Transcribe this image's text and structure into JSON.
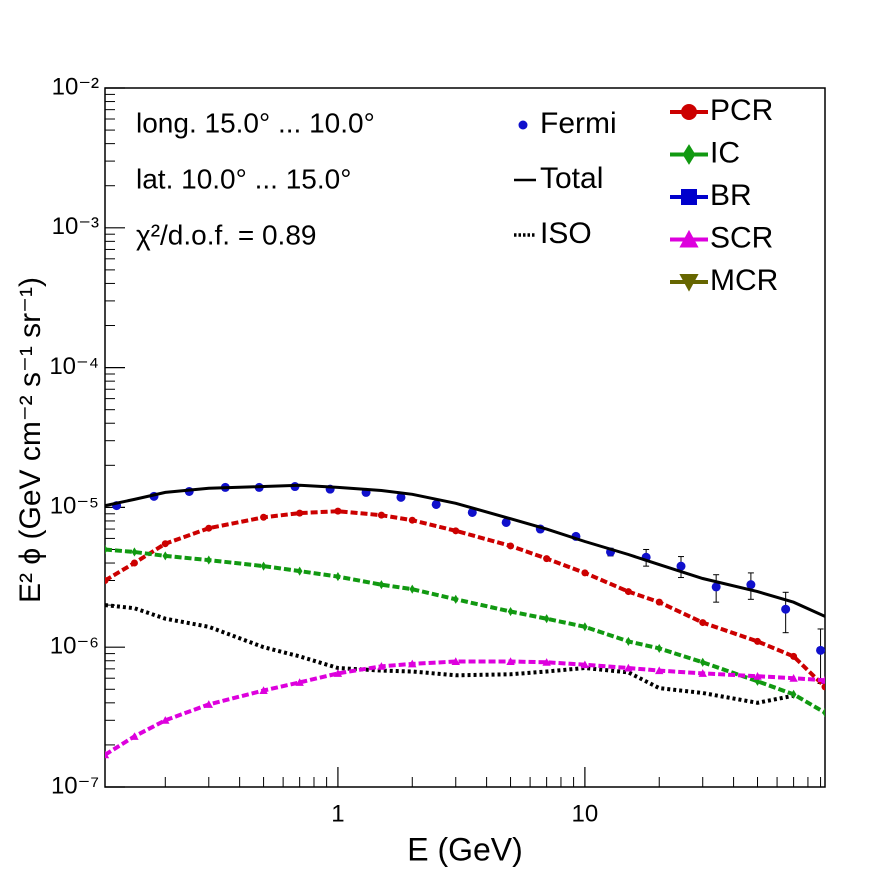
{
  "chart_data": {
    "type": "line",
    "xlabel": "E (GeV)",
    "ylabel": "E² ϕ (GeV cm⁻² s⁻¹ sr⁻¹)",
    "annotations": [
      "long. 15.0° ... 10.0°",
      "lat. 10.0° ... 15.0°",
      "χ²/d.o.f. = 0.89"
    ],
    "log_x": true,
    "log_y": true,
    "xlim": [
      0.114,
      93.8
    ],
    "ylim": [
      1e-07,
      0.01
    ],
    "xticks": [
      1,
      10
    ],
    "xminorticks": [
      0.2,
      0.3,
      0.4,
      0.5,
      0.6,
      0.7,
      0.8,
      0.9,
      2,
      3,
      4,
      5,
      6,
      7,
      8,
      9,
      20,
      30,
      40,
      50,
      60,
      70,
      80,
      90
    ],
    "yticks": [
      {
        "value": 1e-07,
        "label": "10⁻⁷"
      },
      {
        "value": 1e-06,
        "label": "10⁻⁶"
      },
      {
        "value": 1e-05,
        "label": "10⁻⁵"
      },
      {
        "value": 0.0001,
        "label": "10⁻⁴"
      },
      {
        "value": 0.001,
        "label": "10⁻³"
      },
      {
        "value": 0.01,
        "label": "10⁻²"
      }
    ],
    "yminorticks": [
      2e-07,
      3e-07,
      4e-07,
      5e-07,
      6e-07,
      7e-07,
      8e-07,
      9e-07,
      2e-06,
      3e-06,
      4e-06,
      5e-06,
      6e-06,
      7e-06,
      8e-06,
      9e-06,
      2e-05,
      3e-05,
      4e-05,
      5e-05,
      6e-05,
      7e-05,
      8e-05,
      9e-05,
      0.0002,
      0.0003,
      0.0004,
      0.0005,
      0.0006,
      0.0007,
      0.0008,
      0.0009,
      0.002,
      0.003,
      0.004,
      0.005,
      0.006,
      0.007,
      0.008,
      0.009
    ],
    "x": [
      0.114,
      0.15,
      0.2,
      0.3,
      0.5,
      0.7,
      1,
      1.5,
      2,
      3,
      5,
      7,
      10,
      15,
      20,
      30,
      50,
      70,
      93.8
    ],
    "series": [
      {
        "name": "Fermi",
        "color": "#1010cc",
        "marker": "circle",
        "style": "points",
        "x": [
          0.127,
          0.18,
          0.25,
          0.35,
          0.48,
          0.67,
          0.93,
          1.3,
          1.8,
          2.5,
          3.5,
          4.8,
          6.6,
          9.2,
          12.7,
          17.7,
          24.5,
          34,
          47,
          65,
          90
        ],
        "values": [
          1.03e-05,
          1.2e-05,
          1.3e-05,
          1.39e-05,
          1.39e-05,
          1.41e-05,
          1.35e-05,
          1.28e-05,
          1.18e-05,
          1.05e-05,
          9.2e-06,
          7.8e-06,
          7e-06,
          6.2e-06,
          4.8e-06,
          4.4e-06,
          3.8e-06,
          2.7e-06,
          2.8e-06,
          1.87e-06,
          9.5e-07
        ],
        "errors": [
          3e-07,
          3e-07,
          3e-07,
          3e-07,
          3e-07,
          3e-07,
          3e-07,
          3e-07,
          3e-07,
          3e-07,
          3e-07,
          3e-07,
          3e-07,
          3e-07,
          3e-07,
          6e-07,
          6.5e-07,
          6e-07,
          6e-07,
          6e-07,
          4e-07
        ]
      },
      {
        "name": "Total",
        "color": "#000000",
        "style": "solid",
        "values": [
          1.03e-05,
          1.14e-05,
          1.28e-05,
          1.37e-05,
          1.41e-05,
          1.44e-05,
          1.39e-05,
          1.32e-05,
          1.24e-05,
          1.07e-05,
          8.3e-06,
          7e-06,
          5.7e-06,
          4.6e-06,
          3.9e-06,
          3.1e-06,
          2.5e-06,
          2.1e-06,
          1.66e-06
        ]
      },
      {
        "name": "ISO",
        "color": "#000000",
        "style": "dotted",
        "values": [
          2e-06,
          1.9e-06,
          1.6e-06,
          1.4e-06,
          1e-06,
          8.6e-07,
          7.1e-07,
          6.8e-07,
          6.7e-07,
          6.3e-07,
          6.4e-07,
          6.7e-07,
          7.1e-07,
          6.6e-07,
          5.1e-07,
          4.7e-07,
          4e-07,
          4.5e-07,
          null
        ]
      },
      {
        "name": "PCR",
        "color": "#cc0000",
        "marker": "circle",
        "style": "dashed",
        "values": [
          3e-06,
          4e-06,
          5.5e-06,
          7.1e-06,
          8.5e-06,
          9.1e-06,
          9.4e-06,
          8.8e-06,
          8.1e-06,
          6.8e-06,
          5.3e-06,
          4.3e-06,
          3.4e-06,
          2.5e-06,
          2.1e-06,
          1.5e-06,
          1.1e-06,
          8.6e-07,
          5.2e-07
        ]
      },
      {
        "name": "IC",
        "color": "#119911",
        "marker": "diamond",
        "style": "dashed",
        "values": [
          5e-06,
          4.8e-06,
          4.5e-06,
          4.2e-06,
          3.8e-06,
          3.5e-06,
          3.2e-06,
          2.8e-06,
          2.6e-06,
          2.2e-06,
          1.8e-06,
          1.6e-06,
          1.4e-06,
          1.1e-06,
          9.8e-07,
          7.8e-07,
          5.7e-07,
          4.6e-07,
          3.4e-07
        ]
      },
      {
        "name": "BR",
        "color": "#0000cc",
        "marker": "square",
        "style": "dashed"
      },
      {
        "name": "SCR",
        "color": "#dd00dd",
        "marker": "triangle",
        "style": "dashed",
        "values": [
          1.7e-07,
          2.3e-07,
          3e-07,
          3.9e-07,
          4.9e-07,
          5.6e-07,
          6.5e-07,
          7.3e-07,
          7.6e-07,
          7.9e-07,
          7.9e-07,
          7.8e-07,
          7.5e-07,
          7.1e-07,
          6.8e-07,
          6.5e-07,
          6.2e-07,
          6e-07,
          5.8e-07
        ]
      },
      {
        "name": "MCR",
        "color": "#666600",
        "marker": "triangle-down",
        "style": "dashed"
      }
    ]
  }
}
